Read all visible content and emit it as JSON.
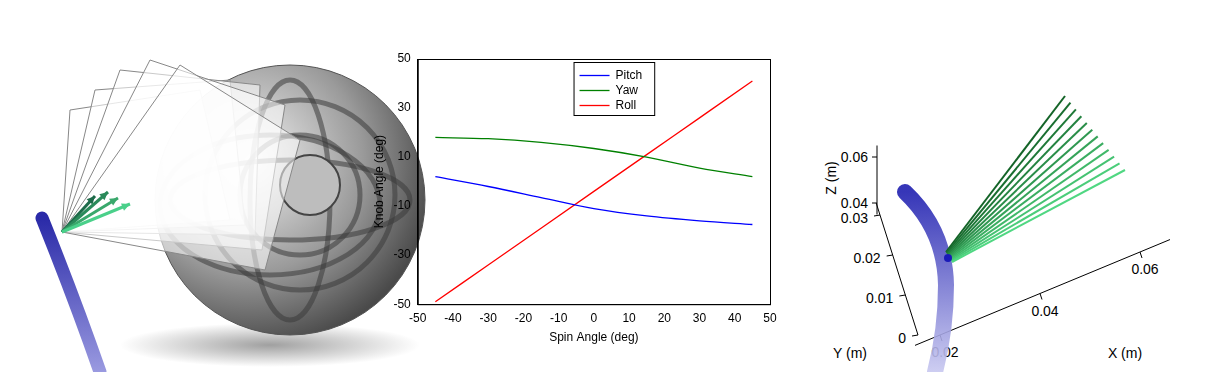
{
  "chart_data": {
    "type": "line",
    "x_label": "Spin Angle (deg)",
    "y_label": "Knob Angle (deg)",
    "x": [
      -45,
      -30,
      -15,
      0,
      15,
      30,
      45
    ],
    "series": [
      {
        "name": "Pitch",
        "color": "#0000ff",
        "values": [
          2,
          -2,
          -6.5,
          -11,
          -14,
          -16,
          -17.5
        ]
      },
      {
        "name": "Yaw",
        "color": "#008000",
        "values": [
          18,
          17.5,
          16,
          13.5,
          10,
          5.5,
          2
        ]
      },
      {
        "name": "Roll",
        "color": "#ff0000",
        "values": [
          -49,
          -34,
          -19,
          -4,
          11,
          26,
          41
        ]
      }
    ],
    "xlim": [
      -50,
      50
    ],
    "xticks": [
      -50,
      -40,
      -30,
      -20,
      -10,
      0,
      10,
      20,
      30,
      40,
      50
    ],
    "ylim": [
      -50,
      50
    ],
    "yticks": [
      -50,
      -30,
      -10,
      10,
      30,
      50
    ],
    "grid": false,
    "legend": "top"
  },
  "panel_3d": {
    "x_label": "X (m)",
    "y_label": "Y (m)",
    "z_label": "Z (m)",
    "xlim": [
      0.015,
      0.066
    ],
    "xticks": [
      0.02,
      0.04,
      0.06
    ],
    "ylim": [
      0,
      0.033
    ],
    "yticks": [
      0,
      0.01,
      0.02,
      0.03
    ],
    "zlim": [
      0.035,
      0.065
    ],
    "zticks": [
      0.04,
      0.06
    ]
  }
}
